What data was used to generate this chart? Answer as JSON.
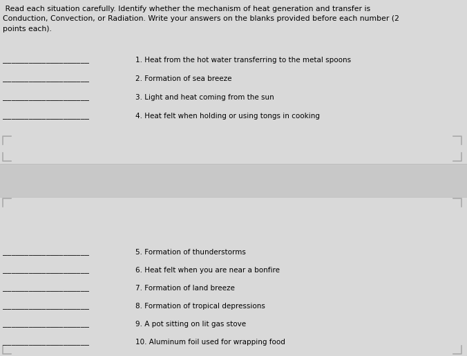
{
  "bg_color": "#d4d4d4",
  "top_section_color": "#d9d9d9",
  "bottom_section_color": "#d9d9d9",
  "gap_color": "#c8c8c8",
  "title_text": " Read each situation carefully. Identify whether the mechanism of heat generation and transfer is\nConduction, Convection, or Radiation. Write your answers on the blanks provided before each number (2\npoints each).",
  "title_fontsize": 7.8,
  "blank": "____________________",
  "items_top": [
    "1. Heat from the hot water transferring to the metal spoons",
    "2. Formation of sea breeze",
    "3. Light and heat coming from the sun",
    "4. Heat felt when holding or using tongs in cooking"
  ],
  "items_bottom": [
    "5. Formation of thunderstorms",
    "6. Heat felt when you are near a bonfire",
    "7. Formation of land breeze",
    "8. Formation of tropical depressions",
    "9. A pot sitting on lit gas stove",
    "10. Aluminum foil used for wrapping food"
  ],
  "corner_color": "#aaaaaa",
  "fontsize_items": 7.5,
  "fig_width": 6.76,
  "fig_height": 5.15,
  "dpi": 100
}
